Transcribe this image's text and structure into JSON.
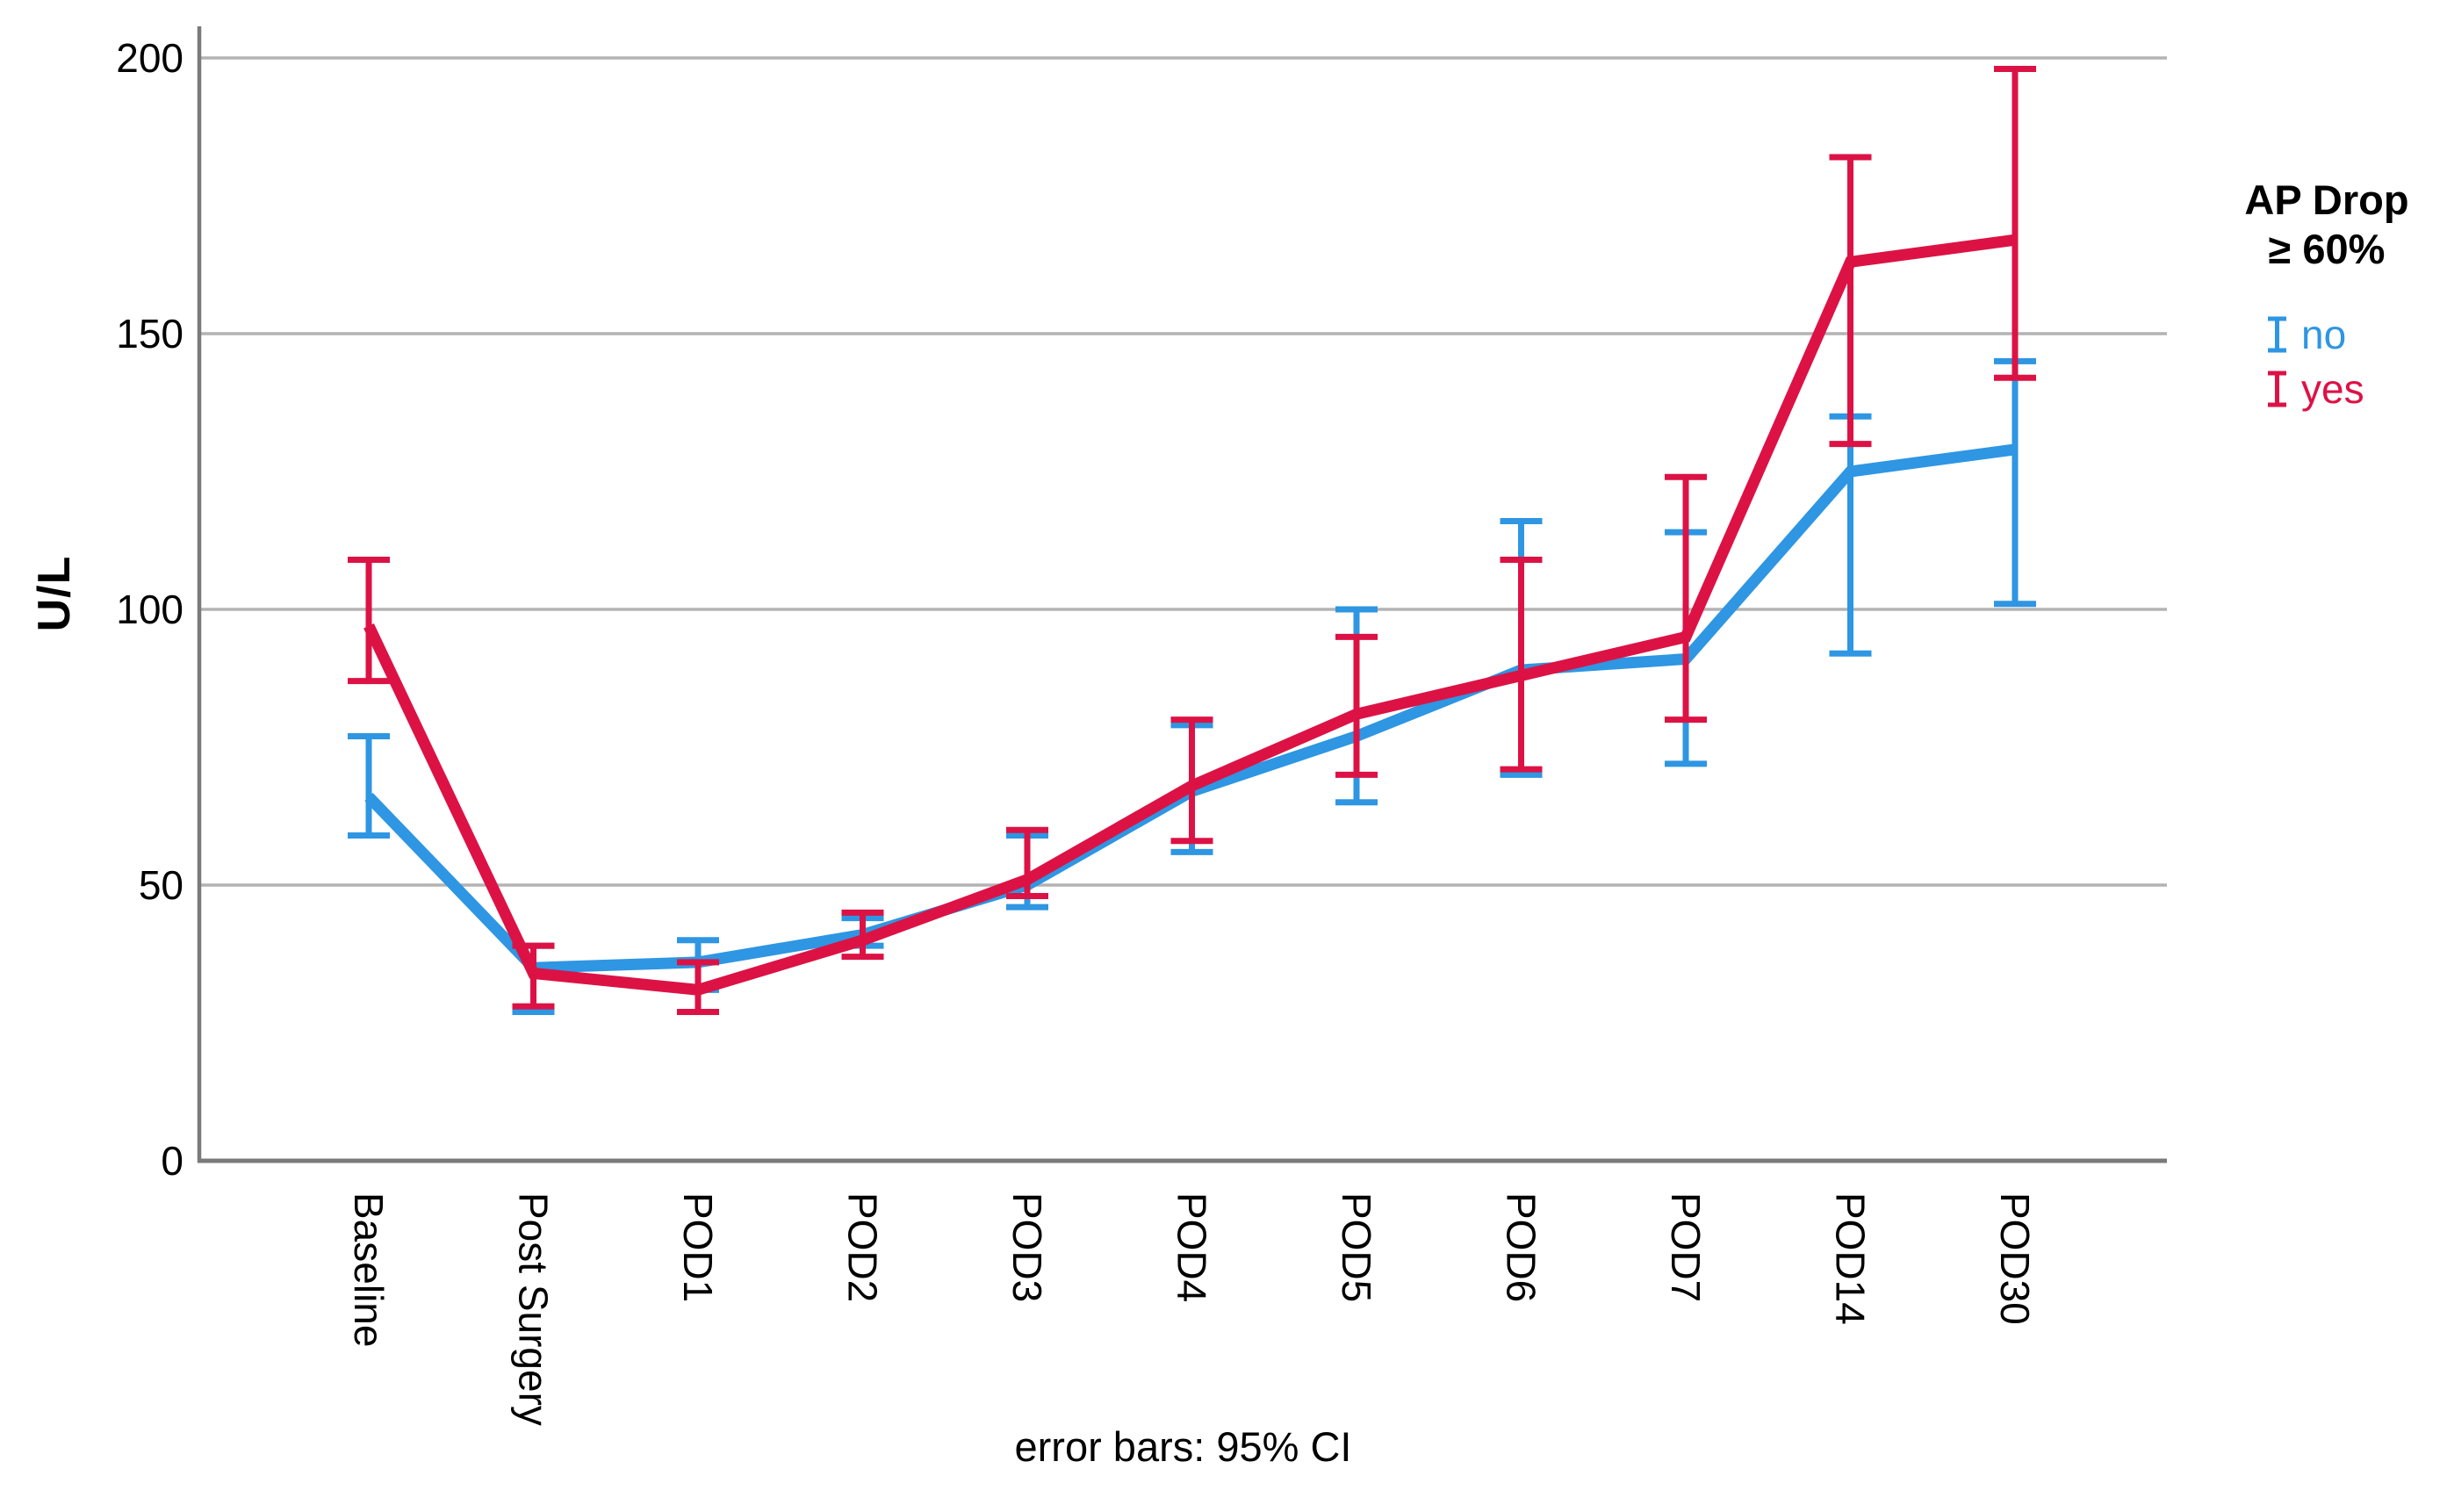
{
  "ylabel": "U/L",
  "caption": "error bars: 95% CI",
  "legend": {
    "title_line1": "AP Drop",
    "title_line2": "≥ 60%",
    "items": [
      {
        "label": "no",
        "color": "#2E96E2"
      },
      {
        "label": "yes",
        "color": "#DC1245"
      }
    ]
  },
  "chart_data": {
    "type": "line",
    "title": "",
    "xlabel": "",
    "ylabel": "U/L",
    "caption": "error bars: 95% CI",
    "error_bars": "95% CI",
    "grid": "horizontal",
    "legend_position": "right",
    "legend_title": "AP Drop ≥ 60%",
    "ylim": [
      0,
      207
    ],
    "yticks": [
      0,
      50,
      100,
      150,
      200
    ],
    "categories": [
      "Baseline",
      "Post Surgery",
      "POD1",
      "POD2",
      "POD3",
      "POD4",
      "POD5",
      "POD6",
      "POD7",
      "POD14",
      "POD30"
    ],
    "series": [
      {
        "name": "no",
        "color": "#2E96E2",
        "values": [
          66,
          35,
          36,
          41,
          50,
          67,
          77,
          89,
          91,
          125,
          129
        ],
        "ci_low": [
          59,
          27,
          31,
          39,
          46,
          56,
          65,
          70,
          72,
          92,
          101
        ],
        "ci_high": [
          77,
          39,
          40,
          44,
          59,
          79,
          100,
          116,
          114,
          135,
          145
        ]
      },
      {
        "name": "yes",
        "color": "#DC1245",
        "values": [
          97,
          34,
          31,
          40,
          51,
          68,
          81,
          88,
          95,
          163,
          167
        ],
        "ci_low": [
          87,
          28,
          27,
          37,
          48,
          58,
          70,
          71,
          80,
          130,
          142
        ],
        "ci_high": [
          109,
          39,
          36,
          45,
          60,
          80,
          95,
          109,
          124,
          182,
          198
        ]
      }
    ],
    "colors": {
      "grid": "#B3B3B3",
      "axis": "#7A7A7A",
      "text": "#000000"
    }
  }
}
